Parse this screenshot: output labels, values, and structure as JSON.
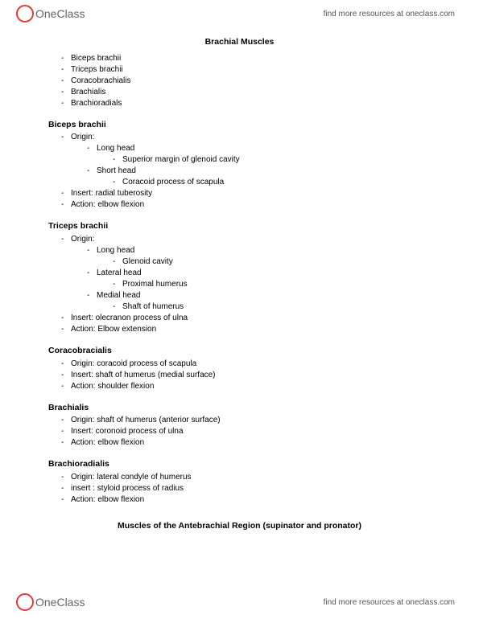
{
  "brand": {
    "name": "OneClass",
    "tagline": "find more resources at oneclass.com"
  },
  "doc": {
    "title": "Brachial Muscles",
    "intro_list": [
      "Biceps brachii",
      "Triceps brachii",
      "Coracobrachialis",
      "Brachialis",
      "Brachioradials"
    ],
    "sections": [
      {
        "heading": "Biceps brachii",
        "items": [
          {
            "text": "Origin:",
            "children": [
              {
                "text": "Long head",
                "children": [
                  {
                    "text": "Superior margin of glenoid cavity"
                  }
                ]
              },
              {
                "text": "Short head",
                "children": [
                  {
                    "text": "Coracoid process of scapula"
                  }
                ]
              }
            ]
          },
          {
            "text": "Insert: radial tuberosity"
          },
          {
            "text": "Action: elbow flexion"
          }
        ]
      },
      {
        "heading": "Triceps brachii",
        "items": [
          {
            "text": "Origin:",
            "children": [
              {
                "text": "Long head",
                "children": [
                  {
                    "text": "Glenoid cavity"
                  }
                ]
              },
              {
                "text": "Lateral head",
                "children": [
                  {
                    "text": "Proximal humerus"
                  }
                ]
              },
              {
                "text": "Medial head",
                "children": [
                  {
                    "text": "Shaft of humerus"
                  }
                ]
              }
            ]
          },
          {
            "text": "Insert: olecranon process of ulna"
          },
          {
            "text": "Action: Elbow extension"
          }
        ]
      },
      {
        "heading": "Coracobracialis",
        "items": [
          {
            "text": "Origin: coracoid process of scapula"
          },
          {
            "text": "Insert: shaft of humerus (medial surface)"
          },
          {
            "text": "Action: shoulder flexion"
          }
        ]
      },
      {
        "heading": "Brachialis",
        "items": [
          {
            "text": "Origin: shaft of humerus (anterior surface)"
          },
          {
            "text": "Insert: coronoid process of ulna"
          },
          {
            "text": "Action: elbow flexion"
          }
        ]
      },
      {
        "heading": "Brachioradialis",
        "items": [
          {
            "text": "Origin: lateral condyle of humerus"
          },
          {
            "text": "insert : styloid process of radius"
          },
          {
            "text": "Action: elbow flexion"
          }
        ]
      }
    ],
    "subtitle": "Muscles of the Antebrachial Region (supinator and pronator)"
  }
}
